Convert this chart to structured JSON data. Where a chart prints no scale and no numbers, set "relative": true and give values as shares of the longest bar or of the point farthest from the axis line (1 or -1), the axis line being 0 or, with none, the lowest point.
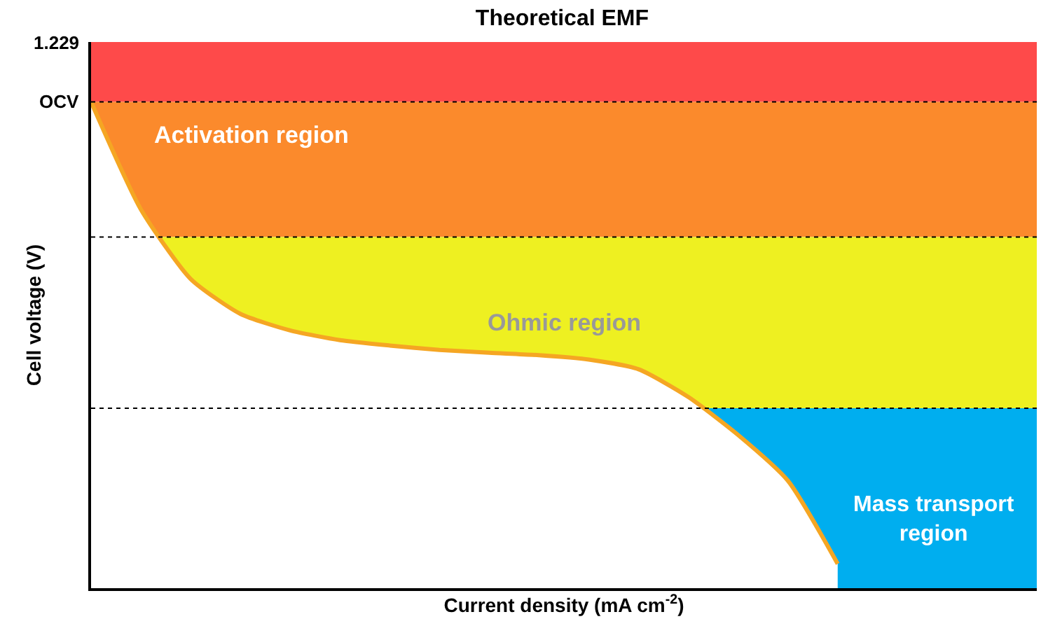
{
  "chart_data": {
    "type": "area",
    "title": "Theoretical EMF",
    "xlabel": "Current density (mA cm$^{-2}$)",
    "ylabel": "Cell voltage (V)",
    "relative": true,
    "tick_labels": false,
    "categories": [
      null,
      null,
      null,
      null,
      null,
      null,
      null,
      null,
      null,
      null,
      null,
      null,
      null,
      null,
      null,
      null,
      null,
      null,
      null,
      null
    ],
    "series": [
      {
        "color": "#f5a623",
        "values": [
          1.0,
          0.779,
          0.636,
          0.564,
          0.53,
          0.51,
          0.499,
          0.49,
          0.484,
          0.479,
          0.47,
          0.45,
          0.393,
          0.315,
          0.221,
          0.05,
          null,
          null,
          null,
          null
        ]
      }
    ],
    "annotations": [
      "1.229"
    ],
    "ref_lines": [
      {
        "axis": "y",
        "value": 1.0,
        "label": "OCV",
        "color": "#000000",
        "line_style": "dotted"
      },
      {
        "axis": "y",
        "value": 0.722,
        "label": null,
        "color": "#000000",
        "line_style": "dotted"
      },
      {
        "axis": "y",
        "value": 0.37,
        "label": null,
        "color": "#000000",
        "line_style": "dotted"
      }
    ],
    "bands": [
      {
        "axis": "y",
        "from": 1.0,
        "to": 1.123,
        "label": null,
        "color": "#fe4a4a"
      },
      {
        "axis": "y",
        "from": 0.722,
        "to": 1.0,
        "label": "Activation region",
        "color": "#fb8a2c"
      },
      {
        "axis": "y",
        "from": 0.37,
        "to": 0.722,
        "label": "Ohmic region",
        "color": "#eef021"
      },
      {
        "axis": "y",
        "from": 0.0,
        "to": 0.37,
        "label": "Mass transport region",
        "color": "#00aeef"
      }
    ]
  }
}
